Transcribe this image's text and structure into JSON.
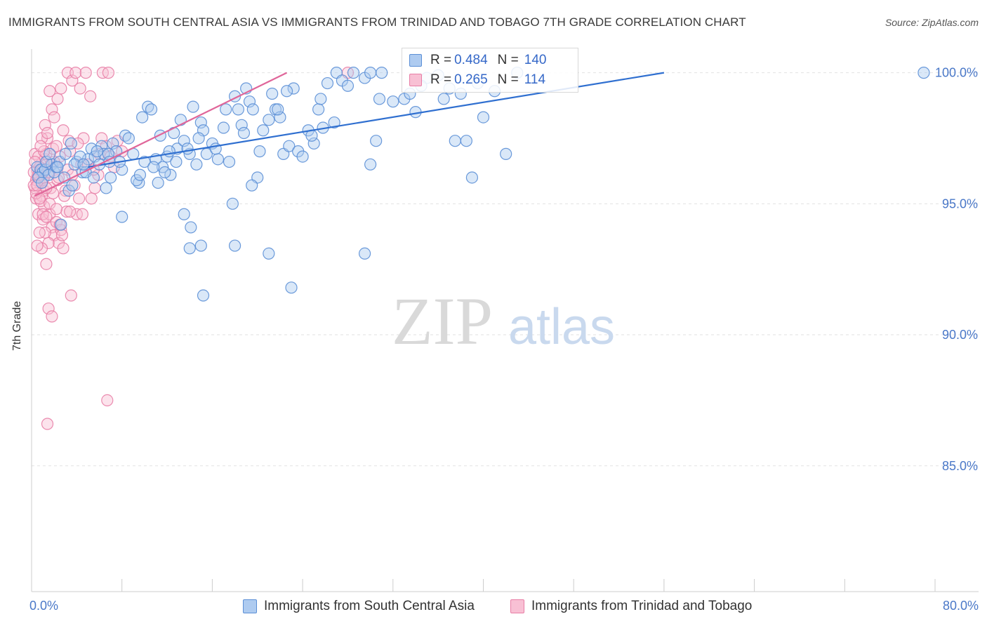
{
  "title": "IMMIGRANTS FROM SOUTH CENTRAL ASIA VS IMMIGRANTS FROM TRINIDAD AND TOBAGO 7TH GRADE CORRELATION CHART",
  "source": "Source: ZipAtlas.com",
  "watermark": {
    "zip": "ZIP",
    "atlas": "atlas"
  },
  "legend": {
    "r_label": "R =",
    "n_label": "N =",
    "blue": {
      "r": "0.484",
      "n": "140"
    },
    "pink": {
      "r": "0.265",
      "n": "114"
    }
  },
  "colors": {
    "blue": "#5b8fd6",
    "blue_fill": "#aecbf0",
    "blue_line": "#2f6fd0",
    "pink": "#e87ea6",
    "pink_fill": "#f8c0d4",
    "pink_line": "#e0669a",
    "tick_text": "#4a78c8"
  },
  "chart_data": {
    "type": "scatter",
    "title": "IMMIGRANTS FROM SOUTH CENTRAL ASIA VS IMMIGRANTS FROM TRINIDAD AND TOBAGO 7TH GRADE CORRELATION CHART",
    "xlabel": "",
    "ylabel": "7th Grade",
    "xlim": [
      0,
      80
    ],
    "ylim": [
      80.2,
      100.9
    ],
    "x_tick_labels": [
      "0.0%",
      "80.0%"
    ],
    "y_ticks": [
      100,
      95,
      90,
      85
    ],
    "y_tick_labels": [
      "100.0%",
      "95.0%",
      "90.0%",
      "85.0%"
    ],
    "grid": true,
    "legend_position": "top-center",
    "series": [
      {
        "name": "Immigrants from South Central Asia",
        "color": "blue",
        "trend": {
          "x1": 5.0,
          "y1": 96.4,
          "x2": 56.0,
          "y2": 100.0
        },
        "points": [
          [
            0.5,
            96.4
          ],
          [
            0.8,
            96.3
          ],
          [
            1.0,
            96.2
          ],
          [
            1.2,
            96.3
          ],
          [
            1.5,
            96.1
          ],
          [
            0.6,
            96.0
          ],
          [
            1.8,
            96.5
          ],
          [
            2.0,
            96.2
          ],
          [
            2.2,
            96.4
          ],
          [
            2.5,
            96.6
          ],
          [
            3.0,
            96.9
          ],
          [
            3.5,
            97.3
          ],
          [
            4.0,
            96.6
          ],
          [
            4.5,
            96.2
          ],
          [
            5.0,
            96.7
          ],
          [
            5.3,
            97.1
          ],
          [
            5.6,
            96.8
          ],
          [
            6.0,
            96.5
          ],
          [
            6.2,
            97.2
          ],
          [
            6.4,
            96.9
          ],
          [
            7.0,
            96.0
          ],
          [
            7.2,
            97.3
          ],
          [
            7.5,
            97.0
          ],
          [
            8.0,
            96.3
          ],
          [
            8.3,
            97.6
          ],
          [
            8.6,
            97.5
          ],
          [
            9.0,
            96.9
          ],
          [
            9.5,
            95.8
          ],
          [
            10.0,
            96.6
          ],
          [
            10.3,
            98.7
          ],
          [
            10.6,
            98.6
          ],
          [
            11.0,
            96.7
          ],
          [
            11.2,
            95.8
          ],
          [
            11.6,
            96.4
          ],
          [
            12.0,
            96.8
          ],
          [
            12.3,
            96.1
          ],
          [
            12.6,
            97.7
          ],
          [
            12.9,
            97.1
          ],
          [
            13.2,
            98.2
          ],
          [
            13.5,
            97.4
          ],
          [
            14.0,
            96.9
          ],
          [
            14.3,
            98.7
          ],
          [
            14.6,
            96.5
          ],
          [
            15.0,
            98.1
          ],
          [
            15.2,
            97.8
          ],
          [
            15.5,
            96.9
          ],
          [
            16.0,
            97.3
          ],
          [
            16.5,
            96.7
          ],
          [
            17.0,
            97.9
          ],
          [
            17.2,
            98.6
          ],
          [
            17.5,
            96.6
          ],
          [
            18.0,
            99.1
          ],
          [
            18.3,
            98.6
          ],
          [
            18.6,
            98.0
          ],
          [
            19.0,
            99.4
          ],
          [
            19.3,
            98.9
          ],
          [
            19.6,
            98.6
          ],
          [
            20.0,
            96.0
          ],
          [
            20.5,
            97.8
          ],
          [
            21.0,
            98.2
          ],
          [
            21.3,
            99.2
          ],
          [
            21.6,
            98.6
          ],
          [
            22.0,
            98.3
          ],
          [
            22.3,
            96.9
          ],
          [
            22.8,
            97.2
          ],
          [
            23.2,
            99.4
          ],
          [
            23.6,
            97.0
          ],
          [
            24.0,
            96.8
          ],
          [
            24.5,
            97.8
          ],
          [
            25.0,
            97.3
          ],
          [
            25.4,
            98.6
          ],
          [
            25.8,
            97.9
          ],
          [
            26.2,
            99.6
          ],
          [
            27.0,
            100.0
          ],
          [
            27.5,
            99.7
          ],
          [
            28.5,
            100.0
          ],
          [
            29.5,
            99.8
          ],
          [
            30.0,
            100.0
          ],
          [
            31.0,
            100.0
          ],
          [
            32.0,
            98.9
          ],
          [
            33.0,
            99.0
          ],
          [
            34.0,
            98.5
          ],
          [
            35.0,
            99.8
          ],
          [
            36.5,
            99.0
          ],
          [
            37.5,
            97.4
          ],
          [
            38.5,
            97.4
          ],
          [
            39.0,
            96.0
          ],
          [
            40.0,
            98.3
          ],
          [
            42.0,
            96.9
          ],
          [
            41.0,
            99.3
          ],
          [
            13.5,
            94.6
          ],
          [
            14.1,
            94.1
          ],
          [
            14.0,
            93.3
          ],
          [
            15.0,
            93.4
          ],
          [
            15.2,
            91.5
          ],
          [
            17.8,
            95.0
          ],
          [
            18.0,
            93.4
          ],
          [
            19.5,
            95.7
          ],
          [
            21.0,
            93.1
          ],
          [
            23.0,
            91.8
          ],
          [
            29.5,
            93.1
          ],
          [
            30.0,
            96.5
          ],
          [
            30.5,
            97.4
          ],
          [
            8.0,
            94.5
          ],
          [
            11.8,
            96.2
          ],
          [
            9.3,
            95.9
          ],
          [
            6.8,
            96.9
          ],
          [
            2.6,
            94.2
          ],
          [
            3.3,
            95.5
          ],
          [
            4.3,
            96.8
          ],
          [
            4.8,
            96.2
          ],
          [
            5.8,
            97.0
          ],
          [
            6.6,
            95.6
          ],
          [
            7.8,
            96.6
          ],
          [
            9.6,
            96.1
          ],
          [
            10.8,
            96.4
          ],
          [
            12.8,
            96.6
          ],
          [
            13.8,
            97.1
          ],
          [
            14.8,
            97.5
          ],
          [
            16.3,
            97.1
          ],
          [
            3.8,
            96.5
          ],
          [
            2.9,
            96.0
          ],
          [
            1.3,
            96.6
          ],
          [
            0.9,
            95.8
          ],
          [
            1.6,
            96.9
          ],
          [
            2.3,
            96.4
          ],
          [
            3.6,
            95.7
          ],
          [
            4.6,
            96.5
          ],
          [
            5.5,
            96.0
          ],
          [
            6.9,
            96.6
          ],
          [
            18.8,
            97.7
          ],
          [
            20.2,
            97.0
          ],
          [
            21.8,
            98.6
          ],
          [
            22.6,
            99.3
          ],
          [
            24.8,
            97.6
          ],
          [
            25.6,
            99.0
          ],
          [
            26.8,
            98.1
          ],
          [
            28.0,
            99.5
          ],
          [
            30.8,
            99.0
          ],
          [
            33.5,
            99.2
          ],
          [
            34.5,
            99.5
          ],
          [
            36.0,
            99.9
          ],
          [
            37.0,
            99.4
          ],
          [
            38.0,
            99.2
          ],
          [
            39.5,
            99.6
          ],
          [
            43.0,
            100.0
          ],
          [
            79.0,
            100.0
          ],
          [
            9.8,
            98.3
          ],
          [
            11.4,
            97.6
          ],
          [
            12.2,
            97.0
          ]
        ]
      },
      {
        "name": "Immigrants from Trinidad and Tobago",
        "color": "pink",
        "trend": {
          "x1": 0.3,
          "y1": 95.3,
          "x2": 22.6,
          "y2": 100.0
        },
        "points": [
          [
            0.3,
            96.9
          ],
          [
            0.5,
            96.3
          ],
          [
            0.7,
            95.8
          ],
          [
            0.9,
            96.1
          ],
          [
            1.1,
            95.5
          ],
          [
            0.4,
            95.2
          ],
          [
            0.6,
            94.6
          ],
          [
            0.8,
            96.5
          ],
          [
            1.0,
            95.9
          ],
          [
            1.2,
            96.7
          ],
          [
            0.3,
            95.6
          ],
          [
            0.5,
            96.0
          ],
          [
            0.7,
            96.4
          ],
          [
            0.9,
            95.3
          ],
          [
            1.1,
            94.9
          ],
          [
            0.2,
            96.2
          ],
          [
            0.4,
            95.9
          ],
          [
            0.6,
            96.8
          ],
          [
            0.8,
            95.1
          ],
          [
            1.0,
            94.4
          ],
          [
            1.3,
            96.9
          ],
          [
            1.5,
            96.2
          ],
          [
            1.7,
            95.6
          ],
          [
            1.9,
            97.1
          ],
          [
            2.1,
            96.4
          ],
          [
            2.3,
            95.9
          ],
          [
            2.5,
            96.8
          ],
          [
            1.4,
            97.5
          ],
          [
            1.6,
            94.6
          ],
          [
            1.8,
            94.1
          ],
          [
            2.0,
            93.8
          ],
          [
            2.2,
            94.3
          ],
          [
            2.4,
            93.5
          ],
          [
            2.6,
            94.0
          ],
          [
            2.8,
            93.3
          ],
          [
            1.5,
            93.5
          ],
          [
            1.3,
            92.7
          ],
          [
            1.2,
            93.9
          ],
          [
            0.9,
            93.3
          ],
          [
            3.0,
            95.5
          ],
          [
            3.2,
            96.3
          ],
          [
            3.4,
            97.0
          ],
          [
            3.6,
            96.1
          ],
          [
            3.8,
            95.7
          ],
          [
            4.0,
            94.6
          ],
          [
            4.2,
            95.2
          ],
          [
            4.4,
            96.5
          ],
          [
            4.6,
            97.5
          ],
          [
            5.0,
            96.5
          ],
          [
            5.3,
            95.2
          ],
          [
            5.6,
            95.6
          ],
          [
            5.9,
            96.1
          ],
          [
            6.2,
            97.5
          ],
          [
            6.6,
            97.2
          ],
          [
            7.0,
            96.8
          ],
          [
            1.6,
            99.3
          ],
          [
            1.8,
            98.6
          ],
          [
            2.0,
            98.3
          ],
          [
            2.3,
            99.0
          ],
          [
            2.6,
            99.4
          ],
          [
            3.2,
            100.0
          ],
          [
            3.6,
            99.7
          ],
          [
            3.9,
            100.0
          ],
          [
            4.3,
            99.4
          ],
          [
            4.8,
            100.0
          ],
          [
            5.2,
            99.1
          ],
          [
            6.3,
            100.0
          ],
          [
            6.8,
            100.0
          ],
          [
            1.5,
            91.0
          ],
          [
            1.8,
            90.7
          ],
          [
            3.5,
            91.5
          ],
          [
            6.7,
            87.5
          ],
          [
            1.4,
            86.6
          ],
          [
            0.9,
            97.5
          ],
          [
            1.2,
            98.0
          ],
          [
            1.4,
            97.7
          ],
          [
            2.8,
            97.8
          ],
          [
            3.3,
            97.4
          ],
          [
            2.2,
            97.2
          ],
          [
            1.1,
            97.0
          ],
          [
            0.8,
            97.2
          ],
          [
            0.6,
            96.1
          ],
          [
            0.4,
            95.4
          ],
          [
            0.2,
            95.7
          ],
          [
            1.7,
            96.5
          ],
          [
            2.4,
            96.0
          ],
          [
            2.9,
            95.3
          ],
          [
            3.1,
            94.7
          ],
          [
            0.5,
            93.4
          ],
          [
            0.7,
            93.9
          ],
          [
            1.0,
            94.6
          ],
          [
            1.3,
            94.5
          ],
          [
            1.6,
            95.0
          ],
          [
            1.9,
            95.4
          ],
          [
            2.2,
            94.8
          ],
          [
            2.5,
            94.2
          ],
          [
            2.7,
            93.8
          ],
          [
            3.4,
            94.7
          ],
          [
            4.5,
            94.6
          ],
          [
            4.1,
            97.3
          ],
          [
            5.5,
            96.3
          ],
          [
            6.0,
            96.9
          ],
          [
            7.3,
            96.4
          ],
          [
            7.6,
            97.4
          ],
          [
            8.0,
            97.0
          ],
          [
            0.3,
            96.6
          ],
          [
            0.5,
            95.7
          ],
          [
            0.7,
            95.2
          ],
          [
            0.9,
            96.3
          ],
          [
            1.1,
            96.0
          ],
          [
            28.0,
            100.0
          ],
          [
            1.3,
            95.6
          ],
          [
            1.5,
            96.2
          ],
          [
            2.0,
            96.6
          ]
        ]
      }
    ]
  }
}
